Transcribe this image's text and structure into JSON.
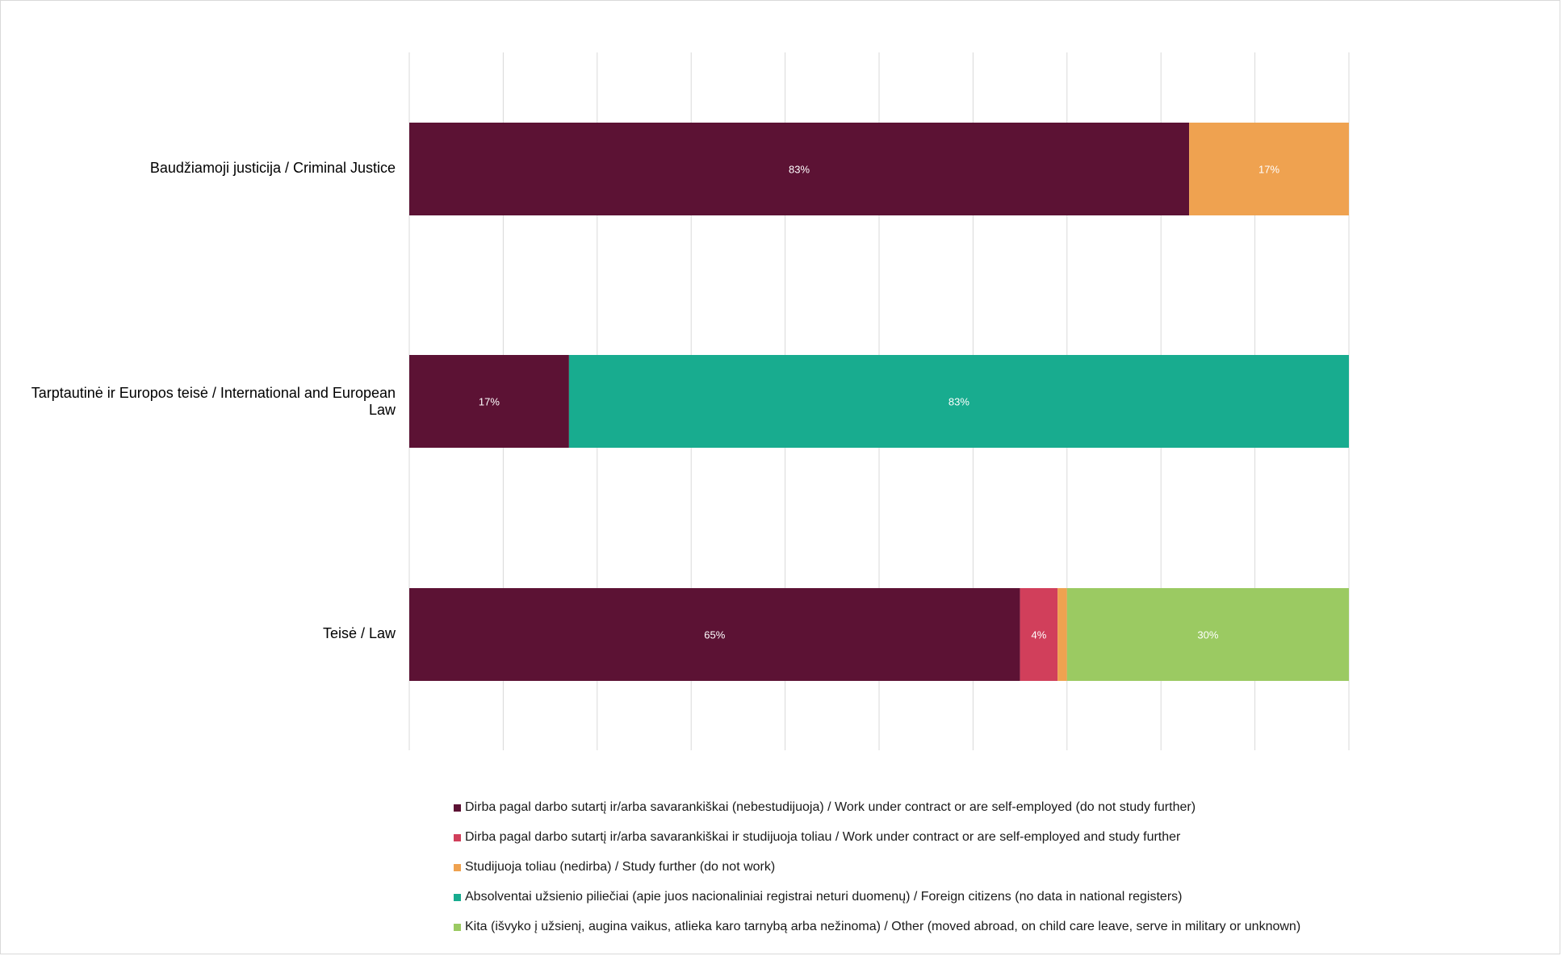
{
  "chart_data": {
    "type": "bar",
    "orientation": "horizontal",
    "stacked": "percent",
    "title": "",
    "xlabel": "",
    "ylabel": "",
    "xlim": [
      0,
      100
    ],
    "grid": "vertical",
    "categories": [
      "Baudžiamoji justicija / Criminal Justice",
      "Tarptautinė ir Europos teisė / International and European Law",
      "Teisė / Law"
    ],
    "series": [
      {
        "name": "Dirba pagal darbo sutartį ir/arba savarankiškai (nebestudijuoja) / Work under contract or are self-employed (do not study further)",
        "color": "#5c1234",
        "values": [
          83,
          17,
          65
        ],
        "labels": [
          "83%",
          "17%",
          "65%"
        ]
      },
      {
        "name": "Dirba pagal darbo sutartį ir/arba savarankiškai  ir studijuoja toliau / Work under contract or are self-employed and study further",
        "color": "#d13f5b",
        "values": [
          0,
          0,
          4
        ],
        "labels": [
          "",
          "",
          "4%"
        ]
      },
      {
        "name": "Studijuoja toliau (nedirba) / Study further (do not work)",
        "color": "#efa250",
        "values": [
          17,
          0,
          1
        ],
        "labels": [
          "17%",
          "",
          ""
        ]
      },
      {
        "name": "Absolventai užsienio piliečiai (apie juos nacionaliniai registrai neturi duomenų) / Foreign citizens (no data in national registers)",
        "color": "#18ac8f",
        "values": [
          0,
          83,
          0
        ],
        "labels": [
          "",
          "83%",
          ""
        ]
      },
      {
        "name": "Kita (išvyko į užsienį, augina vaikus, atlieka karo tarnybą arba nežinoma) / Other (moved abroad, on child care leave, serve in military or unknown)",
        "color": "#9bca62",
        "values": [
          0,
          0,
          30
        ],
        "labels": [
          "",
          "",
          "30%"
        ]
      }
    ],
    "legend_position": "bottom"
  }
}
